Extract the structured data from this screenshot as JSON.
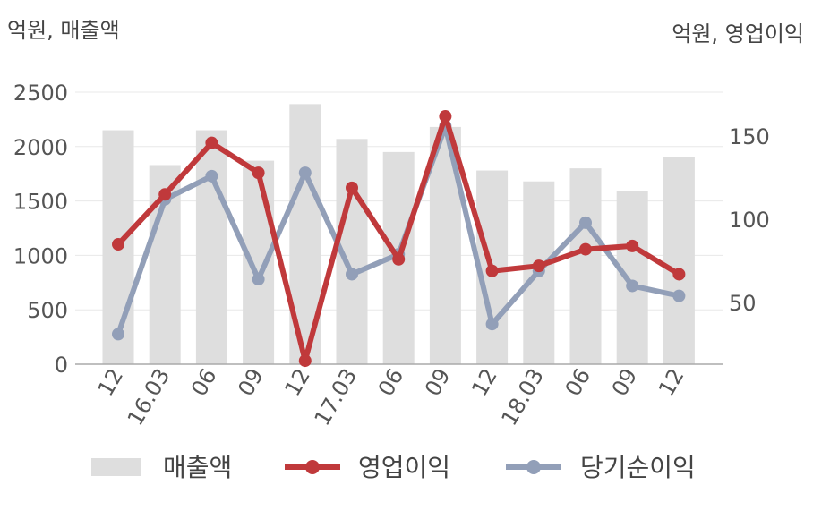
{
  "chart_data": {
    "type": "bar+line",
    "left_axis_unit": "억원, 매출액",
    "right_axis_unit": "억원, 영업이익",
    "categories": [
      "12",
      "16.03",
      "06",
      "09",
      "12",
      "17.03",
      "06",
      "09",
      "12",
      "18.03",
      "06",
      "09",
      "12"
    ],
    "y_left": {
      "ylim": [
        0,
        2500
      ],
      "ticks": [
        "0",
        "500",
        "1000",
        "1500",
        "2000",
        "2500"
      ]
    },
    "y_right": {
      "ylim": [
        12.9,
        176.5
      ],
      "ticks": [
        "50",
        "100",
        "150"
      ]
    },
    "series": [
      {
        "name": "매출액",
        "kind": "bar",
        "axis": "left",
        "color": "#dedede",
        "values": [
          2150,
          1830,
          2150,
          1870,
          2390,
          2070,
          1950,
          2180,
          1780,
          1680,
          1800,
          1590,
          1900
        ]
      },
      {
        "name": "영업이익",
        "kind": "line",
        "axis": "right",
        "color": "#c0393b",
        "values": [
          85,
          115,
          146,
          128,
          15,
          119,
          76,
          162,
          69,
          72,
          82,
          84,
          67
        ]
      },
      {
        "name": "당기순이익",
        "kind": "line",
        "axis": "right",
        "color": "#929fb8",
        "values": [
          31,
          112,
          126,
          64,
          128,
          67,
          79,
          156,
          37,
          69,
          98,
          60,
          54
        ]
      }
    ],
    "grid": true,
    "legend_position": "bottom"
  }
}
